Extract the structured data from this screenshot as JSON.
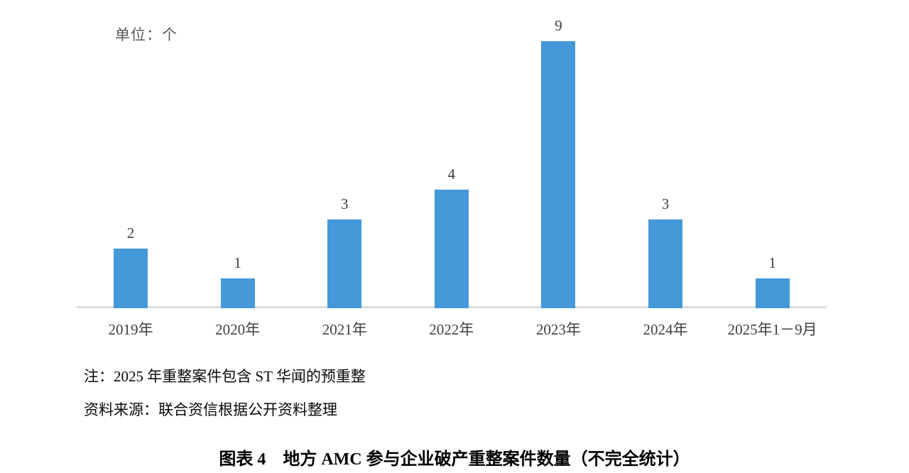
{
  "unit_label": "单位：个",
  "note": "注：2025 年重整案件包含 ST 华闻的预重整",
  "source": "资料来源：联合资信根据公开资料整理",
  "title": "图表 4　地方 AMC 参与企业破产重整案件数量（不完全统计）",
  "colors": {
    "bar": "#4599d8",
    "axis": "#dcdcdc",
    "tick_text": "#3f3f3f",
    "unit_text": "#595959",
    "body_text": "#0a0a0a"
  },
  "chart_data": {
    "type": "bar",
    "categories": [
      "2019年",
      "2020年",
      "2021年",
      "2022年",
      "2023年",
      "2024年",
      "2025年1－9月"
    ],
    "values": [
      2,
      1,
      3,
      4,
      9,
      3,
      1
    ],
    "title": "图表 4　地方 AMC 参与企业破产重整案件数量（不完全统计）",
    "xlabel": "",
    "ylabel": "单位：个",
    "ylim": [
      0,
      9
    ],
    "grid": false,
    "legend": false,
    "data_labels": true,
    "bar_color": "#4599d8"
  }
}
